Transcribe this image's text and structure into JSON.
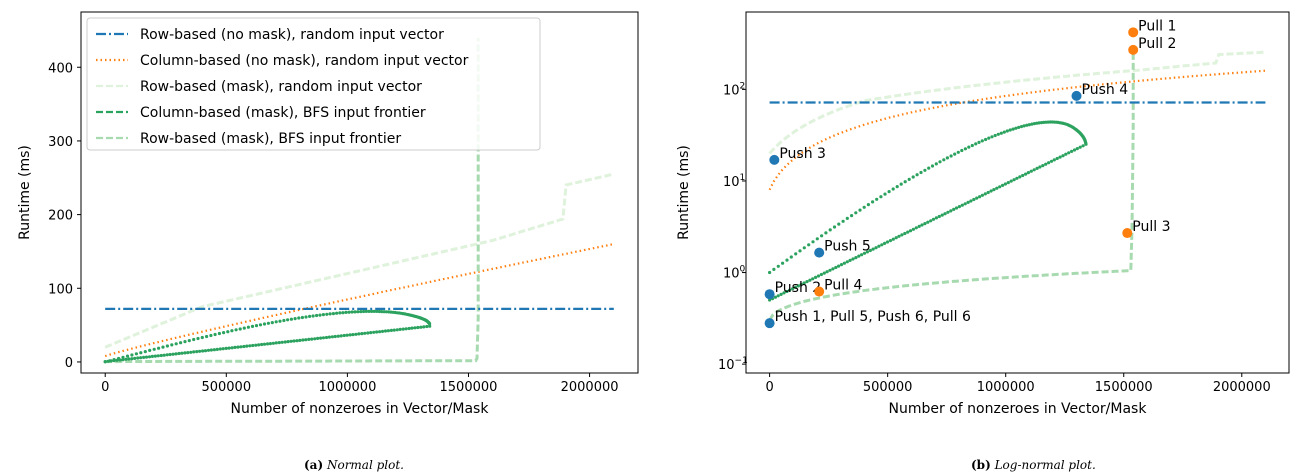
{
  "captions": {
    "left_label": "(a)",
    "left_text": "Normal plot.",
    "right_label": "(b)",
    "right_text": "Log-normal plot."
  },
  "chart_data": [
    {
      "type": "line",
      "scale": "linear",
      "xlabel": "Number of nonzeroes in Vector/Mask",
      "ylabel": "Runtime (ms)",
      "xlim": [
        -100000,
        2200000
      ],
      "ylim": [
        -15,
        475
      ],
      "xticks": [
        0,
        500000,
        1000000,
        1500000,
        2000000
      ],
      "xtick_labels": [
        "0",
        "500000",
        "1000000",
        "1500000",
        "2000000"
      ],
      "yticks": [
        0,
        100,
        200,
        300,
        400
      ],
      "ytick_labels": [
        "0",
        "100",
        "200",
        "300",
        "400"
      ],
      "legend_position": "top-left",
      "series": [
        {
          "name": "Row-based (no mask), random input vector",
          "color": "#1f77b4",
          "style": "dashdot",
          "x": [
            0,
            2100000
          ],
          "y": [
            72,
            72
          ]
        },
        {
          "name": "Column-based (no mask), random input vector",
          "color": "#ff7f0e",
          "style": "dotted",
          "x": [
            0,
            500000,
            1000000,
            1500000,
            2100000
          ],
          "y": [
            10,
            45,
            80,
            110,
            160
          ]
        },
        {
          "name": "Row-based (mask), random input vector",
          "color": "#dff2db",
          "style": "dashed",
          "x": [
            0,
            400000,
            800000,
            1200000,
            1600000,
            1900000,
            2100000
          ],
          "y": [
            20,
            75,
            115,
            140,
            170,
            195,
            255
          ]
        },
        {
          "name": "Column-based (mask), BFS input frontier",
          "color": "#2ca25f",
          "style": "dashed",
          "x": [
            0,
            100000,
            300000,
            600000,
            900000,
            1200000,
            1340000,
            1300000,
            1000000,
            600000,
            200000,
            0
          ],
          "y": [
            1,
            60,
            85,
            90,
            87,
            80,
            50,
            15,
            5,
            2,
            1,
            0
          ]
        },
        {
          "name": "Row-based (mask), BFS input frontier",
          "color": "#a8dab0",
          "style": "dashed",
          "x": [
            0,
            500000,
            1000000,
            1500000,
            1520000,
            1530000,
            1540000
          ],
          "y": [
            0.3,
            0.5,
            0.8,
            1.0,
            2.0,
            10,
            430
          ]
        }
      ]
    },
    {
      "type": "line",
      "scale": "log-y",
      "xlabel": "Number of nonzeroes in Vector/Mask",
      "ylabel": "Runtime (ms)",
      "xlim": [
        -100000,
        2200000
      ],
      "ylim": [
        0.08,
        700
      ],
      "xticks": [
        0,
        500000,
        1000000,
        1500000,
        2000000
      ],
      "xtick_labels": [
        "0",
        "500000",
        "1000000",
        "1500000",
        "2000000"
      ],
      "yticks": [
        0.1,
        1,
        10,
        100
      ],
      "ytick_base": "10",
      "ytick_exponents": [
        "−1",
        "0",
        "1",
        "2"
      ],
      "annotations": [
        {
          "text": "Pull 1",
          "x": 1540000,
          "y": 420,
          "color": "#ff7f0e"
        },
        {
          "text": "Pull 2",
          "x": 1540000,
          "y": 270,
          "color": "#ff7f0e"
        },
        {
          "text": "Push 4",
          "x": 1300000,
          "y": 85,
          "color": "#1f77b4"
        },
        {
          "text": "Push 3",
          "x": 20000,
          "y": 17,
          "color": "#1f77b4"
        },
        {
          "text": "Pull 3",
          "x": 1515000,
          "y": 2.7,
          "color": "#ff7f0e"
        },
        {
          "text": "Push 5",
          "x": 210000,
          "y": 1.65,
          "color": "#1f77b4"
        },
        {
          "text": "Push 2",
          "x": 0,
          "y": 0.58,
          "color": "#1f77b4"
        },
        {
          "text": "Pull 4",
          "x": 210000,
          "y": 0.62,
          "color": "#ff7f0e"
        },
        {
          "text": "Push 1, Pull 5, Push 6, Pull 6",
          "x": 0,
          "y": 0.28,
          "color": "#1f77b4"
        }
      ]
    }
  ]
}
